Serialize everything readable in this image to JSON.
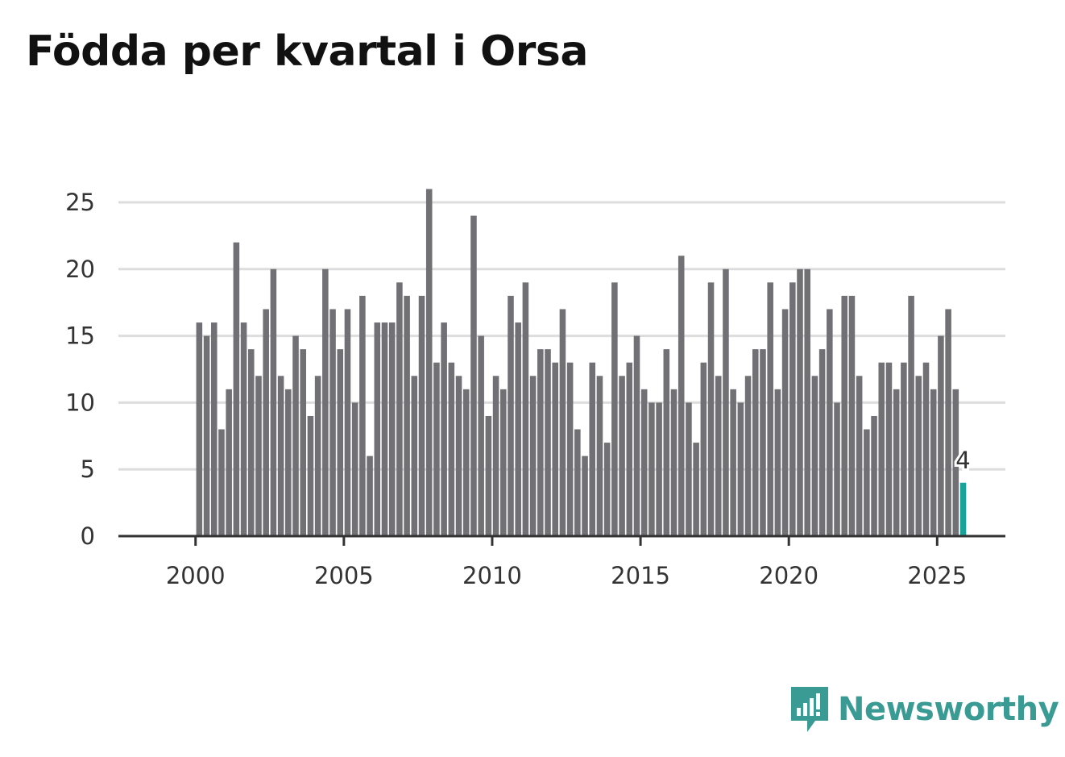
{
  "title": "Födda per kvartal i Orsa",
  "brand": "Newsworthy",
  "colors": {
    "bar": "#707075",
    "highlight": "#1aa39a",
    "grid": "#dddddd",
    "axis": "#333333",
    "brand": "#3a9a94"
  },
  "chart_data": {
    "type": "bar",
    "title": "Födda per kvartal i Orsa",
    "xlabel": "",
    "ylabel": "",
    "ylim": [
      0,
      25
    ],
    "yticks": [
      0,
      5,
      10,
      15,
      20,
      25
    ],
    "xticks": [
      2000,
      2005,
      2010,
      2015,
      2020,
      2025
    ],
    "xlim": [
      1997.4,
      2027.3
    ],
    "grid": true,
    "start_year": 2000,
    "annotation": {
      "label": "4",
      "target": "2025 Q4"
    },
    "values": [
      16,
      15,
      16,
      8,
      11,
      22,
      16,
      14,
      12,
      17,
      20,
      12,
      11,
      15,
      14,
      9,
      12,
      20,
      17,
      14,
      17,
      10,
      18,
      6,
      16,
      16,
      16,
      19,
      18,
      12,
      18,
      26,
      13,
      16,
      13,
      12,
      11,
      24,
      15,
      9,
      12,
      11,
      18,
      16,
      19,
      12,
      14,
      14,
      13,
      17,
      13,
      8,
      6,
      13,
      12,
      7,
      19,
      12,
      13,
      15,
      11,
      10,
      10,
      14,
      11,
      21,
      10,
      7,
      13,
      19,
      12,
      20,
      11,
      10,
      12,
      14,
      14,
      19,
      11,
      17,
      19,
      20,
      20,
      12,
      14,
      17,
      10,
      18,
      18,
      12,
      8,
      9,
      13,
      13,
      11,
      13,
      18,
      12,
      13,
      11,
      15,
      17,
      11,
      4
    ]
  }
}
